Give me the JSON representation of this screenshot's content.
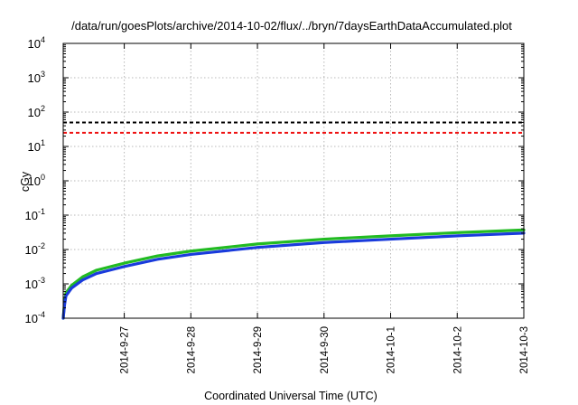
{
  "chart_data": {
    "type": "line",
    "title": "/data/run/goesPlots/archive/2014-10-02/flux/../bryn/7daysEarthDataAccumulated.plot",
    "xlabel": "Coordinated Universal Time (UTC)",
    "ylabel": "cGy",
    "y_scale": "log",
    "ylim": [
      0.0001,
      10000
    ],
    "y_ticks": [
      {
        "base": "10",
        "exp": "-4",
        "value": 0.0001
      },
      {
        "base": "10",
        "exp": "-3",
        "value": 0.001
      },
      {
        "base": "10",
        "exp": "-2",
        "value": 0.01
      },
      {
        "base": "10",
        "exp": "-1",
        "value": 0.1
      },
      {
        "base": "10",
        "exp": "0",
        "value": 1
      },
      {
        "base": "10",
        "exp": "1",
        "value": 10
      },
      {
        "base": "10",
        "exp": "2",
        "value": 100
      },
      {
        "base": "10",
        "exp": "3",
        "value": 1000
      },
      {
        "base": "10",
        "exp": "4",
        "value": 10000
      }
    ],
    "x_range": [
      "2014-09-26T02:00",
      "2014-10-03T00:00"
    ],
    "x_ticks": [
      "2014-9-27",
      "2014-9-28",
      "2014-9-29",
      "2014-9-30",
      "2014-10-1",
      "2014-10-2",
      "2014-10-3"
    ],
    "grid": true,
    "legend": "none",
    "series": [
      {
        "color": "#22bb22",
        "style": "solid",
        "points": [
          [
            "2014-09-26T02:00",
            0.0001
          ],
          [
            "2014-09-26T02:30",
            0.0003
          ],
          [
            "2014-09-26T03:00",
            0.00055
          ],
          [
            "2014-09-26T05:00",
            0.0009
          ],
          [
            "2014-09-26T09:00",
            0.0016
          ],
          [
            "2014-09-26T14:00",
            0.0025
          ],
          [
            "2014-09-27T00:00",
            0.004
          ],
          [
            "2014-09-27T12:00",
            0.0065
          ],
          [
            "2014-09-28T00:00",
            0.009
          ],
          [
            "2014-09-29T00:00",
            0.0145
          ],
          [
            "2014-09-30T00:00",
            0.02
          ],
          [
            "2014-10-01T00:00",
            0.025
          ],
          [
            "2014-10-02T00:00",
            0.031
          ],
          [
            "2014-10-03T00:00",
            0.037
          ]
        ]
      },
      {
        "color": "#1a3bdc",
        "style": "solid",
        "points": [
          [
            "2014-09-26T02:00",
            0.0001
          ],
          [
            "2014-09-26T02:30",
            0.00025
          ],
          [
            "2014-09-26T03:00",
            0.00045
          ],
          [
            "2014-09-26T05:00",
            0.00075
          ],
          [
            "2014-09-26T09:00",
            0.0013
          ],
          [
            "2014-09-26T14:00",
            0.002
          ],
          [
            "2014-09-27T00:00",
            0.0032
          ],
          [
            "2014-09-27T12:00",
            0.0052
          ],
          [
            "2014-09-28T00:00",
            0.0072
          ],
          [
            "2014-09-29T00:00",
            0.0115
          ],
          [
            "2014-09-30T00:00",
            0.016
          ],
          [
            "2014-10-01T00:00",
            0.02
          ],
          [
            "2014-10-02T00:00",
            0.025
          ],
          [
            "2014-10-03T00:00",
            0.03
          ]
        ]
      },
      {
        "color": "#000000",
        "style": "dashed",
        "points": [
          [
            "2014-09-26T02:00",
            50
          ],
          [
            "2014-10-03T00:00",
            50
          ]
        ]
      },
      {
        "color": "#ee1111",
        "style": "dashed",
        "points": [
          [
            "2014-09-26T02:00",
            25
          ],
          [
            "2014-10-03T00:00",
            25
          ]
        ]
      }
    ]
  }
}
